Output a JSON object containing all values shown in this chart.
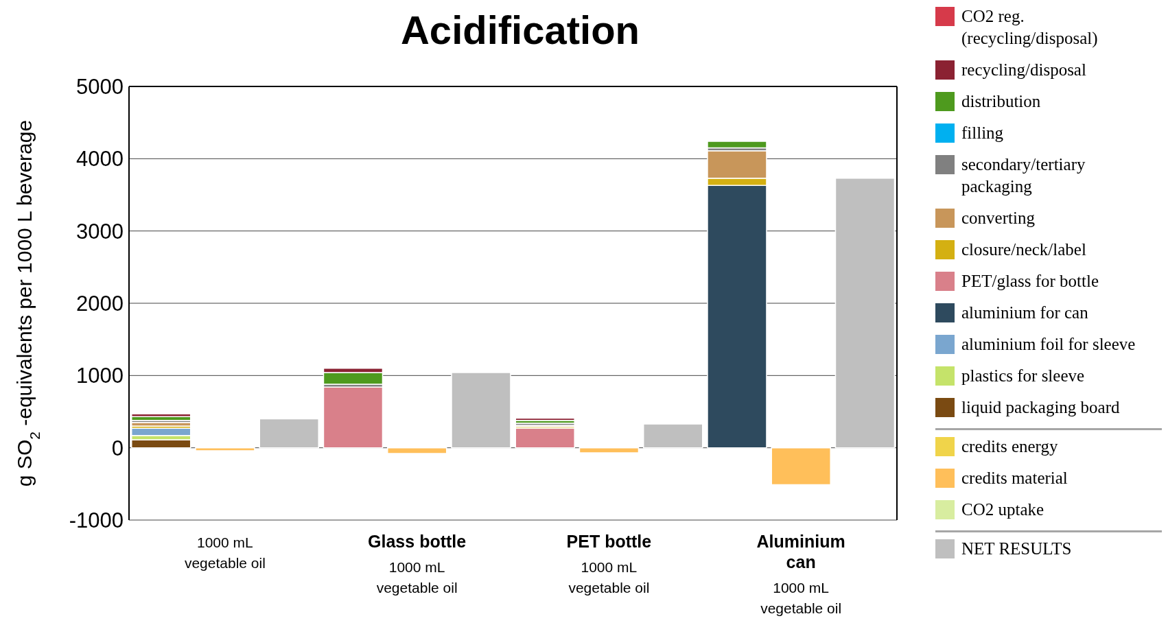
{
  "chart_data": {
    "type": "bar",
    "title": "Acidification",
    "ylabel": "g SO$_{2}$ -equivalents per 1000 L beverage",
    "categories": [
      null,
      "1000 mL\nvegetable oil",
      null,
      null,
      "Glass bottle\n1000 mL\nvegetable oil",
      null,
      null,
      "PET bottle\n1000 mL\nvegetable oil",
      null,
      null,
      "Aluminium\ncan\n1000 mL\nvegetable oil",
      null
    ],
    "stacked": true,
    "series": [
      {
        "name": "liquid packaging board",
        "color": "#7a4a12",
        "values": [
          110,
          null,
          null,
          0,
          null,
          null,
          0,
          null,
          null,
          0,
          null,
          null
        ]
      },
      {
        "name": "plastics for sleeve",
        "color": "#c5e36a",
        "values": [
          60,
          null,
          null,
          0,
          null,
          null,
          0,
          null,
          null,
          0,
          null,
          null
        ]
      },
      {
        "name": "aluminium foil for sleeve",
        "color": "#7aa6cf",
        "values": [
          100,
          null,
          null,
          0,
          null,
          null,
          0,
          null,
          null,
          0,
          null,
          null
        ]
      },
      {
        "name": "aluminium for can",
        "color": "#2e4a5e",
        "values": [
          0,
          null,
          null,
          0,
          null,
          null,
          0,
          null,
          null,
          3630,
          null,
          null
        ]
      },
      {
        "name": "PET/glass for bottle",
        "color": "#d9808a",
        "values": [
          0,
          null,
          null,
          840,
          null,
          null,
          270,
          null,
          null,
          0,
          null,
          null
        ]
      },
      {
        "name": "closure/neck/label",
        "color": "#d4b012",
        "values": [
          30,
          null,
          null,
          0,
          null,
          null,
          20,
          null,
          null,
          100,
          null,
          null
        ]
      },
      {
        "name": "converting",
        "color": "#c8965a",
        "values": [
          50,
          null,
          null,
          0,
          null,
          null,
          20,
          null,
          null,
          380,
          null,
          null
        ]
      },
      {
        "name": "secondary/tertiary packaging",
        "color": "#808080",
        "values": [
          30,
          null,
          null,
          40,
          null,
          null,
          30,
          null,
          null,
          40,
          null,
          null
        ]
      },
      {
        "name": "filling",
        "color": "#00b0f0",
        "values": [
          0,
          null,
          null,
          0,
          null,
          null,
          0,
          null,
          null,
          0,
          null,
          null
        ]
      },
      {
        "name": "distribution",
        "color": "#4e9a1e",
        "values": [
          50,
          null,
          null,
          160,
          null,
          null,
          40,
          null,
          null,
          90,
          null,
          null
        ]
      },
      {
        "name": "recycling/disposal",
        "color": "#8b2232",
        "values": [
          40,
          null,
          null,
          60,
          null,
          null,
          30,
          null,
          null,
          0,
          null,
          null
        ]
      },
      {
        "name": "CO2 reg. (recycling/disposal)",
        "color": "#d63a4a",
        "values": [
          0,
          null,
          null,
          0,
          null,
          null,
          0,
          null,
          null,
          0,
          null,
          null
        ]
      },
      {
        "name": "credits energy",
        "color": "#f0d44a",
        "values": [
          null,
          0,
          null,
          null,
          0,
          null,
          null,
          0,
          null,
          null,
          0,
          null
        ]
      },
      {
        "name": "credits material",
        "color": "#ffbf5a",
        "values": [
          null,
          -40,
          null,
          null,
          -80,
          null,
          null,
          -70,
          null,
          null,
          -510,
          null
        ]
      },
      {
        "name": "CO2 uptake",
        "color": "#d8eda0",
        "values": [
          null,
          0,
          null,
          null,
          0,
          null,
          null,
          0,
          null,
          null,
          0,
          null
        ]
      },
      {
        "name": "NET RESULTS",
        "color": "#bfbfbf",
        "values": [
          null,
          null,
          400,
          null,
          null,
          1040,
          null,
          null,
          330,
          null,
          null,
          3730
        ]
      }
    ],
    "ylim": [
      -1000,
      5000
    ],
    "yticks": [
      -1000,
      0,
      1000,
      2000,
      3000,
      4000,
      5000
    ],
    "grid": "y",
    "legend": "right"
  }
}
